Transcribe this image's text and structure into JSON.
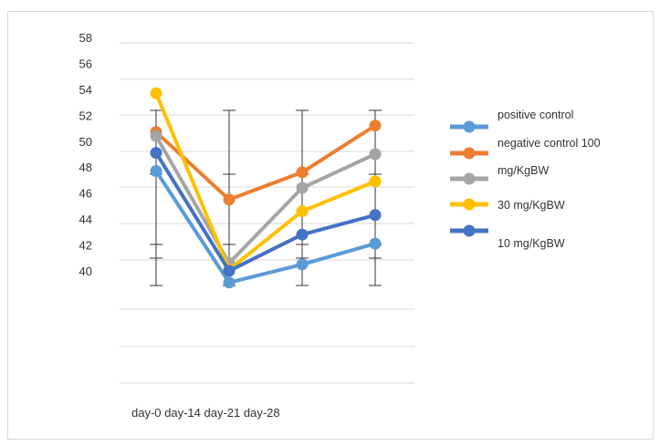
{
  "chart_data": {
    "type": "line",
    "title": "",
    "xlabel": "",
    "ylabel": "",
    "categories": [
      "day-0",
      "day-14",
      "day-21",
      "day-28"
    ],
    "x_axis_text": "day-0 day-14 day-21 day-28",
    "y_tick_labels": [
      "58",
      "56",
      "54",
      "52",
      "50",
      "48",
      "46",
      "44",
      "42",
      "40"
    ],
    "ylim": [
      40,
      58
    ],
    "grid": true,
    "legend_position": "right",
    "error_bars": true,
    "series": [
      {
        "name": "positive control",
        "color": "#5B9BD5",
        "values": [
          47.7,
          39.1,
          40.5,
          42.1
        ]
      },
      {
        "name": "negative control 100",
        "color": "#ED7D31",
        "values": [
          50.7,
          45.5,
          47.6,
          51.2
        ]
      },
      {
        "name": "mg/KgBW",
        "color": "#A5A5A5",
        "values": [
          50.4,
          40.6,
          46.4,
          49.0
        ]
      },
      {
        "name": "30 mg/KgBW",
        "color": "#FFC000",
        "values": [
          53.7,
          40.1,
          44.6,
          46.9
        ]
      },
      {
        "name": "10 mg/KgBW",
        "color": "#4472C4",
        "values": [
          49.1,
          40.0,
          42.8,
          44.3
        ]
      }
    ]
  }
}
